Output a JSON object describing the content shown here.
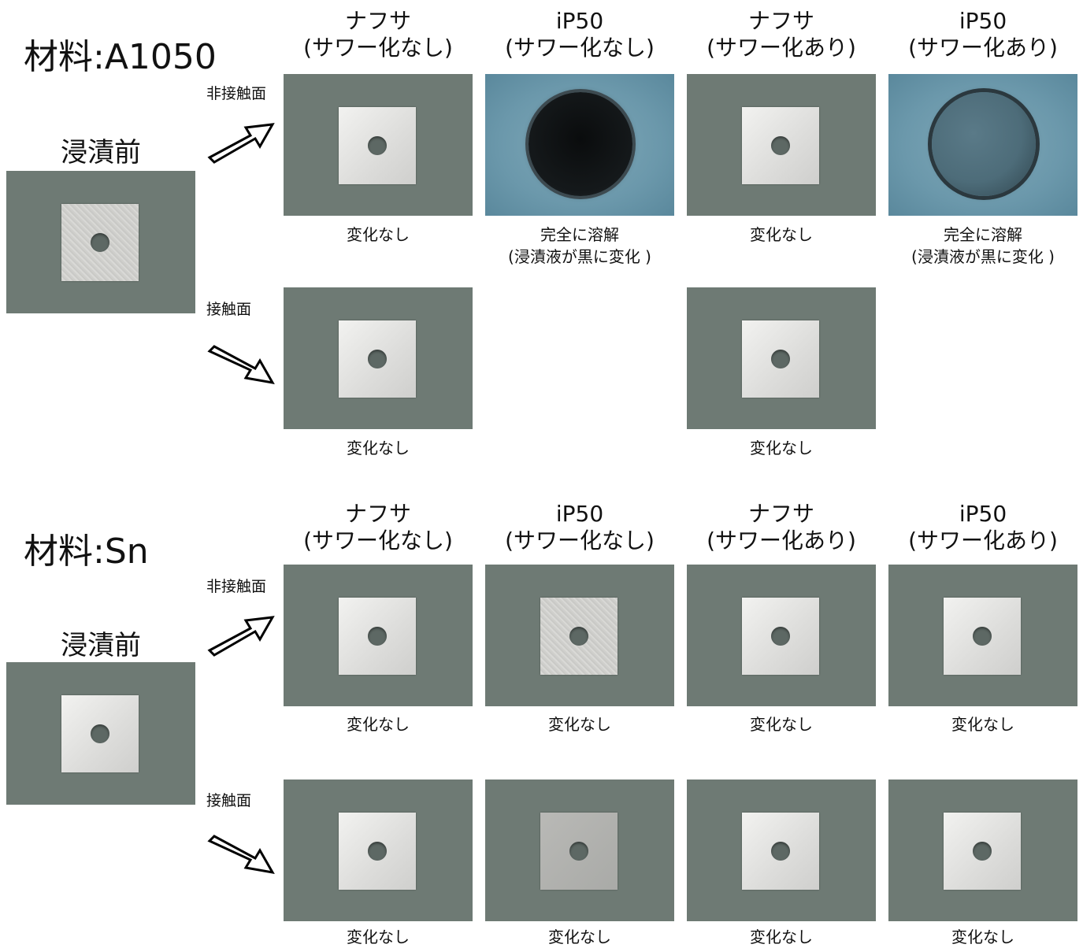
{
  "sections": [
    {
      "title": "材料:A1050",
      "before_label": "浸漬前",
      "columns": [
        "ナフサ\n(サワー化なし)",
        "iP50\n(サワー化なし)",
        "ナフサ\n(サワー化あり)",
        "iP50\n(サワー化あり)"
      ],
      "row_labels": [
        "非接触面",
        "接触面"
      ],
      "captions_row1": [
        "変化なし",
        "完全に溶解\n(浸漬液が黒に変化 )",
        "変化なし",
        "完全に溶解\n(浸漬液が黒に変化 )"
      ],
      "captions_row2": [
        "変化なし",
        "",
        "変化なし",
        ""
      ]
    },
    {
      "title": "材料:Sn",
      "before_label": "浸漬前",
      "columns": [
        "ナフサ\n(サワー化なし)",
        "iP50\n(サワー化なし)",
        "ナフサ\n(サワー化あり)",
        "iP50\n(サワー化あり)"
      ],
      "row_labels": [
        "非接触面",
        "接触面"
      ],
      "captions_row1": [
        "変化なし",
        "変化なし",
        "変化なし",
        "変化なし"
      ],
      "captions_row2": [
        "変化なし",
        "変化なし",
        "変化なし",
        "変化なし"
      ]
    }
  ],
  "colors": {
    "photo_bg": "#6e7a74",
    "solution_blue": "#6b98ab"
  }
}
